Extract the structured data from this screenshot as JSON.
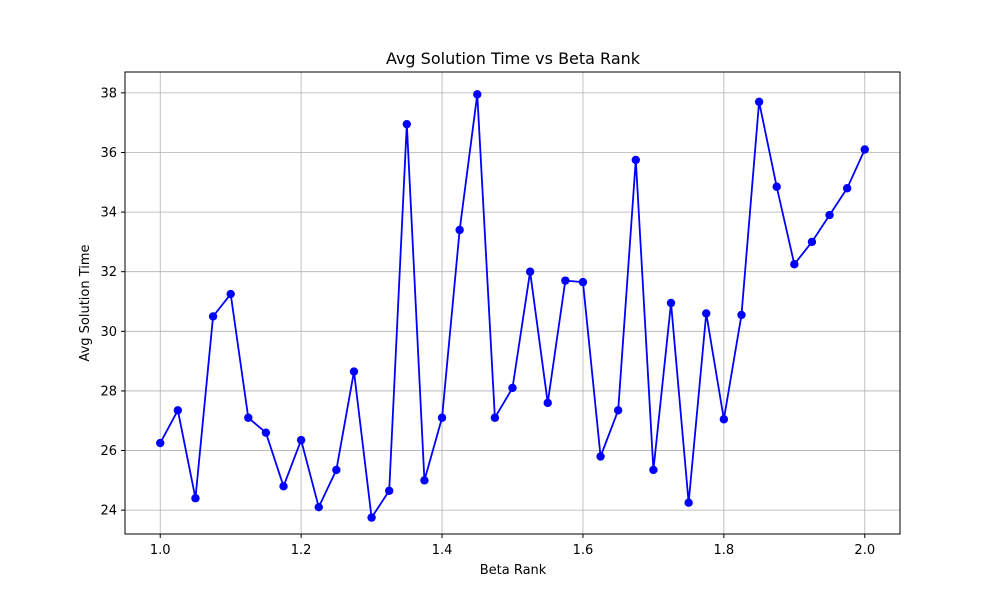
{
  "chart_data": {
    "type": "line",
    "title": "Avg Solution Time vs Beta Rank",
    "xlabel": "Beta Rank",
    "ylabel": "Avg Solution Time",
    "xlim": [
      0.95,
      2.05
    ],
    "ylim": [
      23.2,
      38.7
    ],
    "xticks": [
      1.0,
      1.2,
      1.4,
      1.6,
      1.8,
      2.0
    ],
    "xtick_labels": [
      "1.0",
      "1.2",
      "1.4",
      "1.6",
      "1.8",
      "2.0"
    ],
    "yticks": [
      24,
      26,
      28,
      30,
      32,
      34,
      36,
      38
    ],
    "ytick_labels": [
      "24",
      "26",
      "28",
      "30",
      "32",
      "34",
      "36",
      "38"
    ],
    "grid": true,
    "series": [
      {
        "color": "#0000ff",
        "marker": "circle",
        "x": [
          1.0,
          1.025,
          1.05,
          1.075,
          1.1,
          1.125,
          1.15,
          1.175,
          1.2,
          1.225,
          1.25,
          1.275,
          1.3,
          1.325,
          1.35,
          1.375,
          1.4,
          1.425,
          1.45,
          1.475,
          1.5,
          1.525,
          1.55,
          1.575,
          1.6,
          1.625,
          1.65,
          1.675,
          1.7,
          1.725,
          1.75,
          1.775,
          1.8,
          1.825,
          1.85,
          1.875,
          1.9,
          1.925,
          1.95,
          1.975,
          2.0
        ],
        "y": [
          26.25,
          27.35,
          24.4,
          30.5,
          31.25,
          27.1,
          26.6,
          24.8,
          26.35,
          24.1,
          25.35,
          28.65,
          23.75,
          24.65,
          36.95,
          25.0,
          27.1,
          33.4,
          37.95,
          27.1,
          28.1,
          32.0,
          27.6,
          31.7,
          31.65,
          25.8,
          27.35,
          35.75,
          25.35,
          30.95,
          24.25,
          30.6,
          27.05,
          30.55,
          37.7,
          34.85,
          32.25,
          33.0,
          33.9,
          34.8,
          36.1
        ]
      }
    ]
  }
}
